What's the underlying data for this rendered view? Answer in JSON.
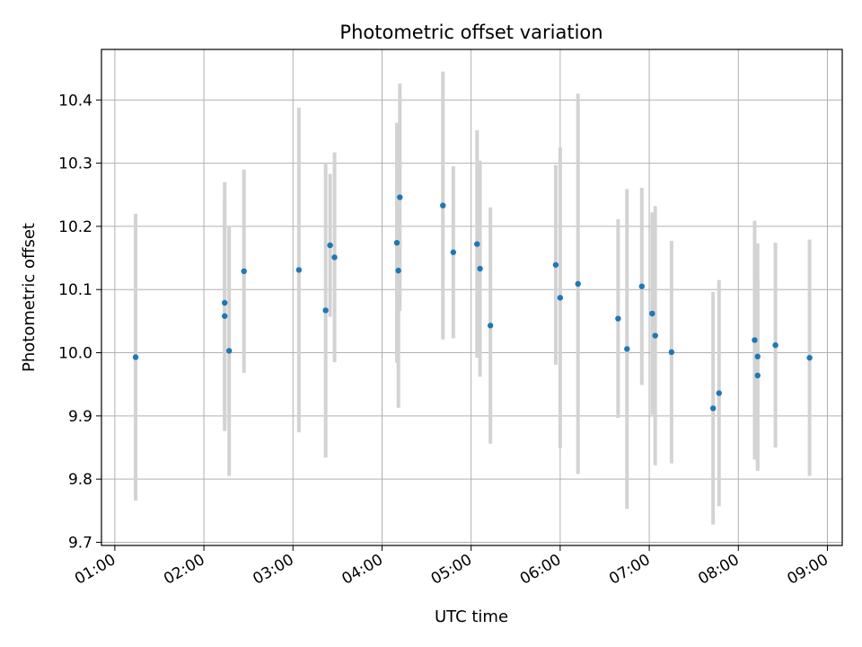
{
  "chart_data": {
    "type": "scatter",
    "title": "Photometric offset variation",
    "xlabel": "UTC time",
    "ylabel": "Photometric offset",
    "x_unit": "UTC time (HH:MM)",
    "xlim": [
      "00:51",
      "09:10"
    ],
    "ylim": [
      9.695,
      10.48
    ],
    "x_ticks": [
      "01:00",
      "02:00",
      "03:00",
      "04:00",
      "05:00",
      "06:00",
      "07:00",
      "08:00",
      "09:00"
    ],
    "y_ticks": [
      9.7,
      9.8,
      9.9,
      10.0,
      10.1,
      10.2,
      10.3,
      10.4
    ],
    "y_tick_labels": [
      "9.7",
      "9.8",
      "9.9",
      "10.0",
      "10.1",
      "10.2",
      "10.3",
      "10.4"
    ],
    "grid": true,
    "marker_color": "#1f77b4",
    "errorbar_color": "#d3d3d3",
    "points": [
      {
        "x": "01:14",
        "y": 9.993,
        "yerr": 0.227
      },
      {
        "x": "02:14",
        "y": 10.079,
        "yerr": 0.191
      },
      {
        "x": "02:14",
        "y": 10.058,
        "yerr": 0.182
      },
      {
        "x": "02:17",
        "y": 10.003,
        "yerr": 0.198
      },
      {
        "x": "02:27",
        "y": 10.129,
        "yerr": 0.161
      },
      {
        "x": "03:04",
        "y": 10.131,
        "yerr": 0.257
      },
      {
        "x": "03:22",
        "y": 10.067,
        "yerr": 0.233
      },
      {
        "x": "03:25",
        "y": 10.17,
        "yerr": 0.113
      },
      {
        "x": "03:28",
        "y": 10.151,
        "yerr": 0.166
      },
      {
        "x": "04:10",
        "y": 10.174,
        "yerr": 0.19
      },
      {
        "x": "04:11",
        "y": 10.13,
        "yerr": 0.217
      },
      {
        "x": "04:12",
        "y": 10.246,
        "yerr": 0.18
      },
      {
        "x": "04:41",
        "y": 10.233,
        "yerr": 0.212
      },
      {
        "x": "04:48",
        "y": 10.159,
        "yerr": 0.136
      },
      {
        "x": "05:04",
        "y": 10.172,
        "yerr": 0.18
      },
      {
        "x": "05:06",
        "y": 10.133,
        "yerr": 0.171
      },
      {
        "x": "05:13",
        "y": 10.043,
        "yerr": 0.187
      },
      {
        "x": "05:57",
        "y": 10.139,
        "yerr": 0.158
      },
      {
        "x": "06:00",
        "y": 10.087,
        "yerr": 0.238
      },
      {
        "x": "06:12",
        "y": 10.109,
        "yerr": 0.301
      },
      {
        "x": "06:39",
        "y": 10.054,
        "yerr": 0.157
      },
      {
        "x": "06:45",
        "y": 10.006,
        "yerr": 0.253
      },
      {
        "x": "06:55",
        "y": 10.105,
        "yerr": 0.156
      },
      {
        "x": "07:02",
        "y": 10.062,
        "yerr": 0.16
      },
      {
        "x": "07:04",
        "y": 10.027,
        "yerr": 0.205
      },
      {
        "x": "07:15",
        "y": 10.001,
        "yerr": 0.176
      },
      {
        "x": "07:43",
        "y": 9.912,
        "yerr": 0.184
      },
      {
        "x": "07:47",
        "y": 9.936,
        "yerr": 0.179
      },
      {
        "x": "08:11",
        "y": 10.02,
        "yerr": 0.189
      },
      {
        "x": "08:13",
        "y": 9.964,
        "yerr": 0.151
      },
      {
        "x": "08:13",
        "y": 9.994,
        "yerr": 0.179
      },
      {
        "x": "08:25",
        "y": 10.012,
        "yerr": 0.162
      },
      {
        "x": "08:48",
        "y": 9.992,
        "yerr": 0.187
      }
    ]
  }
}
